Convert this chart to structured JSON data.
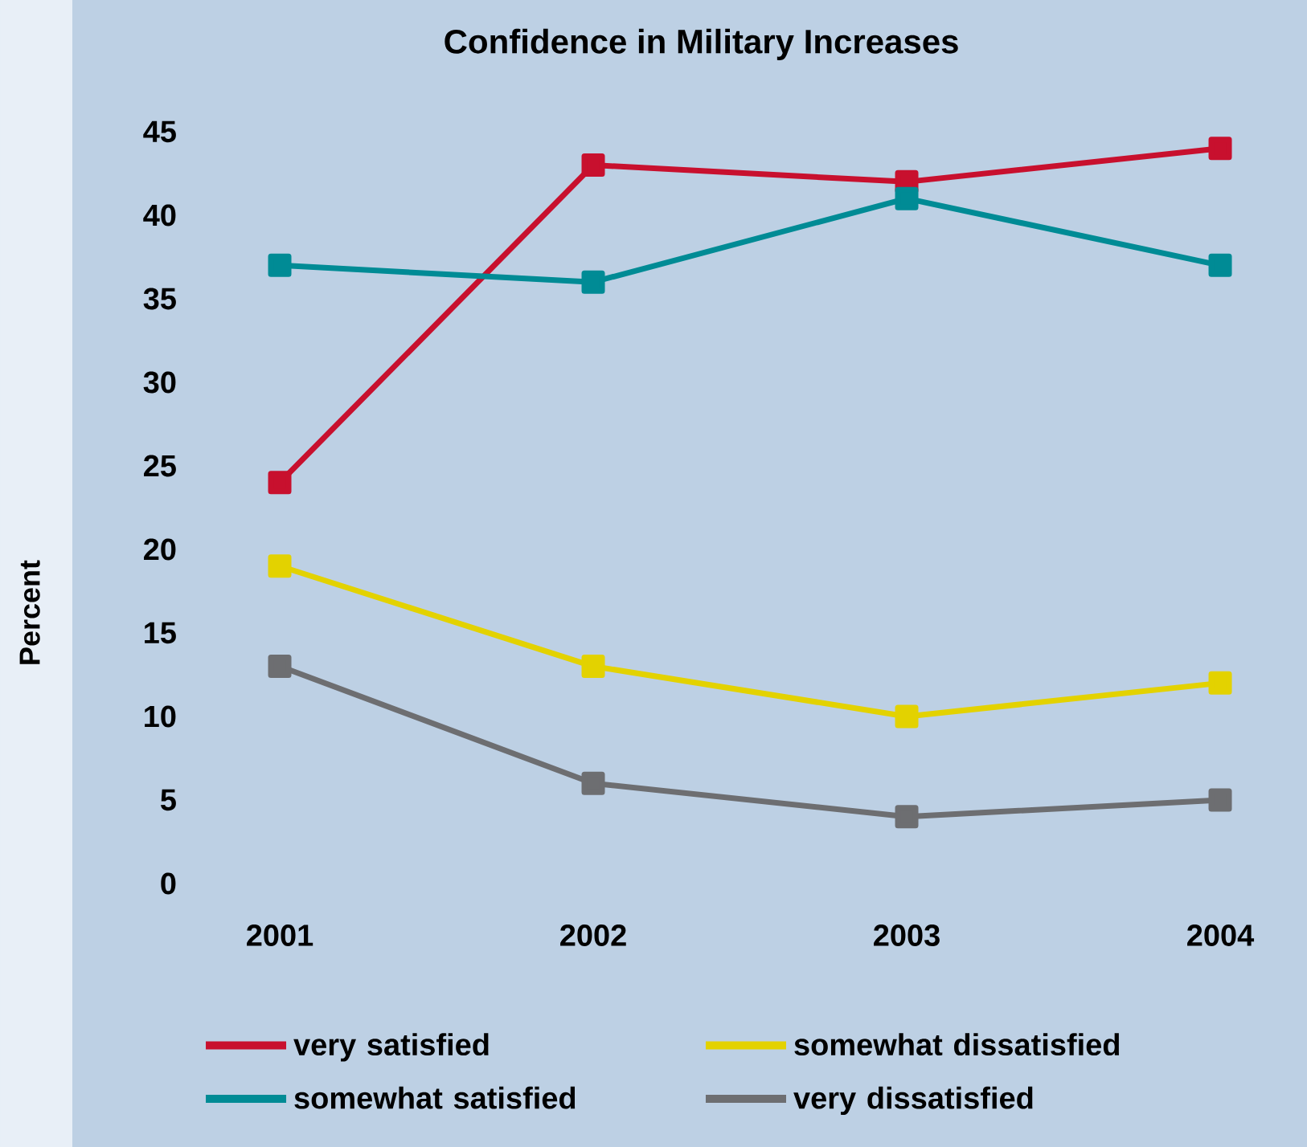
{
  "chart_data": {
    "type": "line",
    "title": "Confidence in Military Increases",
    "ylabel": "Percent",
    "categories": [
      "2001",
      "2002",
      "2003",
      "2004"
    ],
    "ylim": [
      0,
      45
    ],
    "yticks": [
      0,
      5,
      10,
      15,
      20,
      25,
      30,
      35,
      40,
      45
    ],
    "grid": false,
    "legend": "bottom",
    "marker": "square",
    "line_style": "solid",
    "series": [
      {
        "name": "very satisfied",
        "color": "#c8102e",
        "values": [
          24,
          43,
          42,
          44
        ]
      },
      {
        "name": "somewhat dissatisfied",
        "color": "#e3d200",
        "values": [
          19,
          13,
          10,
          12
        ]
      },
      {
        "name": "somewhat satisfied",
        "color": "#008b95",
        "values": [
          37,
          36,
          41,
          37
        ]
      },
      {
        "name": "very dissatisfied",
        "color": "#6d6e71",
        "values": [
          13,
          6,
          4,
          5
        ]
      }
    ]
  }
}
